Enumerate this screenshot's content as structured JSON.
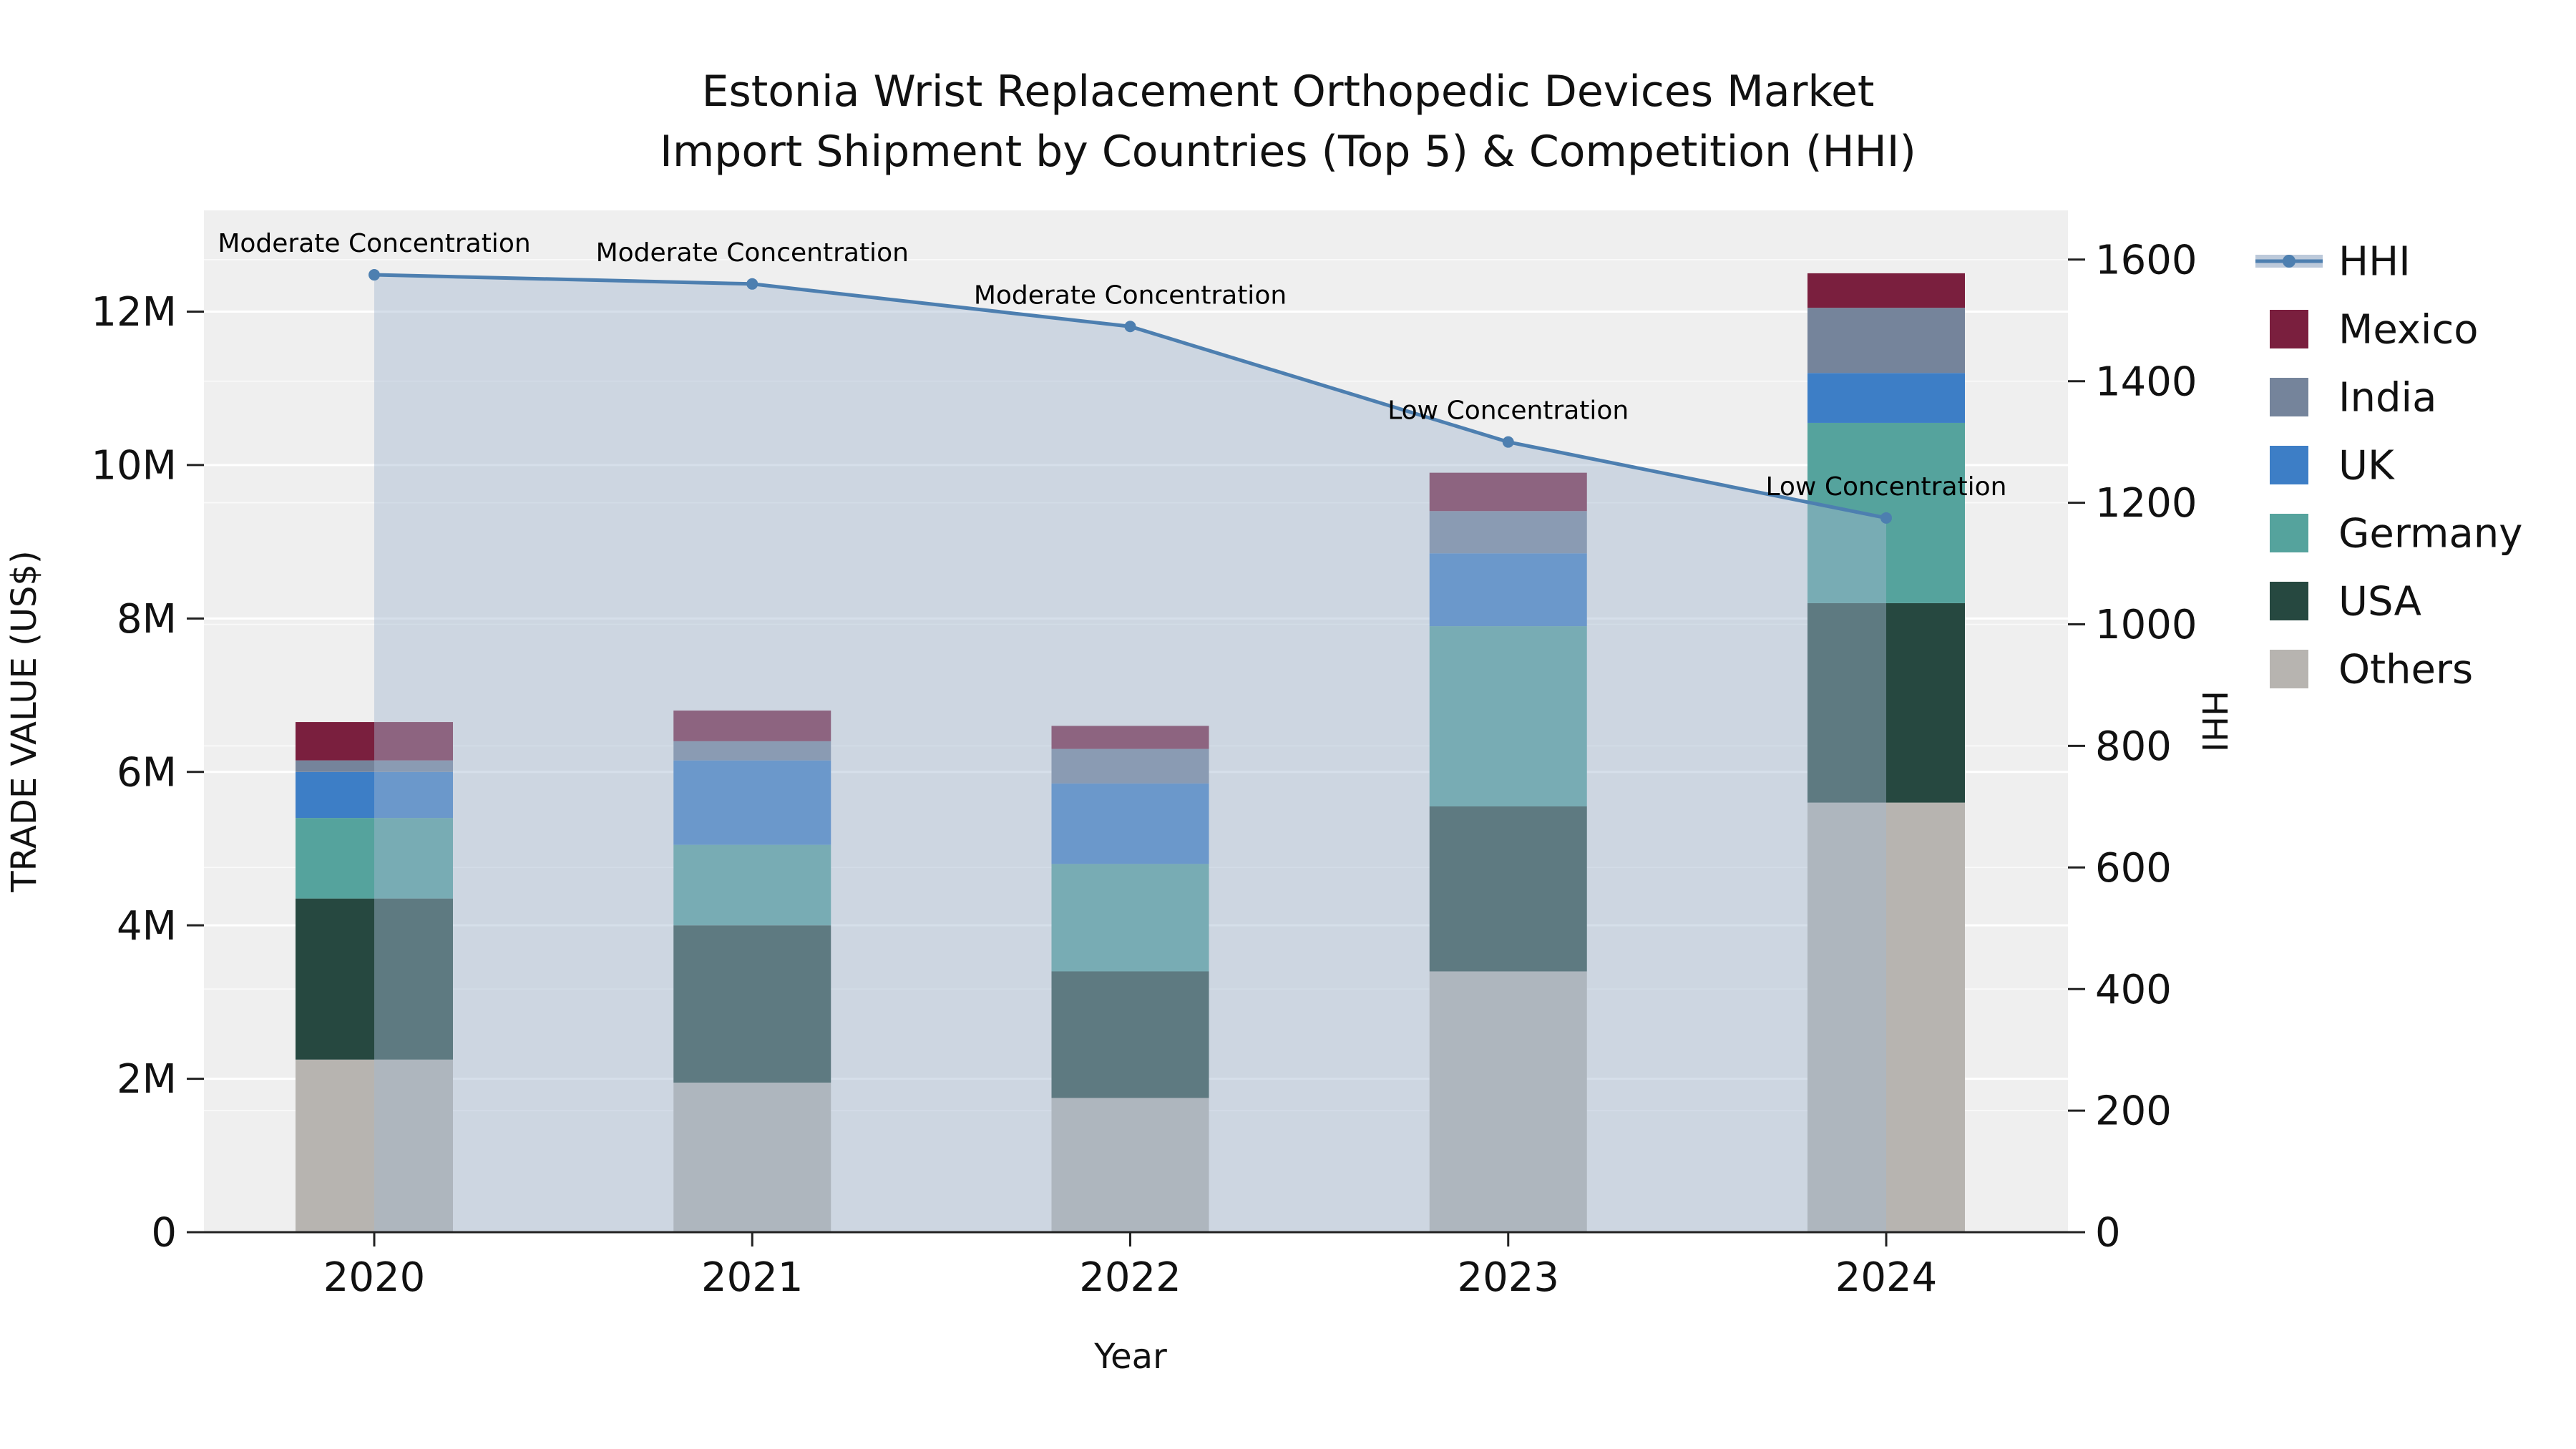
{
  "title": {
    "line1": "Estonia Wrist Replacement Orthopedic Devices Market",
    "line2": "Import Shipment by Countries (Top 5) & Competition (HHI)"
  },
  "axes": {
    "x_label": "Year",
    "y_left_label": "TRADE VALUE (US$)",
    "y_right_label": "HHI"
  },
  "chart_data": {
    "type": "bar",
    "subtype": "stacked-bars-with-overlaid-hhi-line-and-area",
    "title": "Estonia Wrist Replacement Orthopedic Devices Market Import Shipment by Countries (Top 5) & Competition (HHI)",
    "xlabel": "Year",
    "ylabel_left": "TRADE VALUE (US$)",
    "ylabel_right": "HHI",
    "categories": [
      "2020",
      "2021",
      "2022",
      "2023",
      "2024"
    ],
    "bar_unit": "million US$",
    "series": [
      {
        "name": "Others",
        "color": "#b7b4b0",
        "values": [
          2.25,
          1.95,
          1.75,
          3.4,
          5.6
        ]
      },
      {
        "name": "USA",
        "color": "#264840",
        "values": [
          2.1,
          2.05,
          1.65,
          2.15,
          2.6
        ]
      },
      {
        "name": "Germany",
        "color": "#55a39d",
        "values": [
          1.05,
          1.05,
          1.4,
          2.35,
          2.35
        ]
      },
      {
        "name": "UK",
        "color": "#3d7ec6",
        "values": [
          0.6,
          1.1,
          1.05,
          0.95,
          0.65
        ]
      },
      {
        "name": "India",
        "color": "#75849b",
        "values": [
          0.15,
          0.25,
          0.45,
          0.55,
          0.85
        ]
      },
      {
        "name": "Mexico",
        "color": "#7a1f3e",
        "values": [
          0.5,
          0.4,
          0.3,
          0.5,
          0.45
        ]
      }
    ],
    "bar_totals_M": [
      6.65,
      6.8,
      6.6,
      9.9,
      12.45
    ],
    "line": {
      "name": "HHI",
      "color": "#4d7fb0",
      "area_fill": "rgba(165,183,208,0.45)",
      "values": [
        1575,
        1560,
        1490,
        1300,
        1175
      ]
    },
    "annotations": [
      "Moderate Concentration",
      "Moderate Concentration",
      "Moderate Concentration",
      "Low Concentration",
      "Low Concentration"
    ],
    "y_left_ticks": [
      0,
      2,
      4,
      6,
      8,
      10,
      12
    ],
    "y_left_tick_labels": [
      "0",
      "2M",
      "4M",
      "6M",
      "8M",
      "10M",
      "12M"
    ],
    "y_right_ticks": [
      0,
      200,
      400,
      600,
      800,
      1000,
      1200,
      1400,
      1600
    ],
    "ylim_left_M": [
      0,
      13.32
    ],
    "ylim_right": [
      0,
      1681
    ],
    "grid": true,
    "plot_background": "#efefef",
    "legend_position": "right-outside",
    "legend": [
      "HHI",
      "Mexico",
      "India",
      "UK",
      "Germany",
      "USA",
      "Others"
    ]
  }
}
